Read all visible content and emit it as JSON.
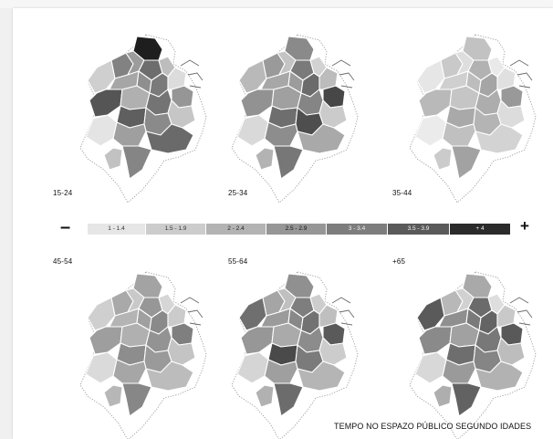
{
  "maps": [
    {
      "label": "15-24",
      "shades": [
        "#cfcfcf",
        "#828282",
        "#1e1e1e",
        "#9c9c9c",
        "#6d6d6d",
        "#bdbdbd",
        "#a6a6a6",
        "#8f8f8f",
        "#7a7a7a",
        "#dcdcdc",
        "#555555",
        "#969696",
        "#b0b0b0",
        "#747474",
        "#c6c6c6",
        "#5f5f5f",
        "#8a8a8a",
        "#e4e4e4",
        "#9f9f9f",
        "#6a6a6a",
        "#858585",
        "#c2c2c2"
      ]
    },
    {
      "label": "25-34",
      "shades": [
        "#b9b9b9",
        "#9a9a9a",
        "#8a8a8a",
        "#c4c4c4",
        "#7a7a7a",
        "#d2d2d2",
        "#a7a7a7",
        "#9c9c9c",
        "#6b6b6b",
        "#bcbcbc",
        "#929292",
        "#474747",
        "#a0a0a0",
        "#858585",
        "#cbcbcb",
        "#6e6e6e",
        "#4e4e4e",
        "#d9d9d9",
        "#8d8d8d",
        "#a9a9a9",
        "#777777",
        "#b3b3b3"
      ]
    },
    {
      "label": "35-44",
      "shades": [
        "#e6e6e6",
        "#c9c9c9",
        "#c2c2c2",
        "#dedede",
        "#b2b2b2",
        "#e9e9e9",
        "#cfcfcf",
        "#bdbdbd",
        "#a5a5a5",
        "#e0e0e0",
        "#b9b9b9",
        "#999999",
        "#c5c5c5",
        "#adadad",
        "#dcdcdc",
        "#a9a9a9",
        "#b4b4b4",
        "#ebebeb",
        "#c0c0c0",
        "#d3d3d3",
        "#a2a2a2",
        "#cbcbcb"
      ]
    },
    {
      "label": "45-54",
      "shades": [
        "#cfcfcf",
        "#a9a9a9",
        "#a3a3a3",
        "#c9c9c9",
        "#979797",
        "#d6d6d6",
        "#b4b4b4",
        "#a0a0a0",
        "#8a8a8a",
        "#cbcbcb",
        "#9e9e9e",
        "#7f7f7f",
        "#b0b0b0",
        "#939393",
        "#c4c4c4",
        "#8d8d8d",
        "#9a9a9a",
        "#dadada",
        "#a6a6a6",
        "#bcbcbc",
        "#878787",
        "#b7b7b7"
      ]
    },
    {
      "label": "55-64",
      "shades": [
        "#6f6f6f",
        "#a5a5a5",
        "#909090",
        "#c0c0c0",
        "#7e7e7e",
        "#cdcdcd",
        "#9b9b9b",
        "#888888",
        "#727272",
        "#bfbfbf",
        "#979797",
        "#5a5a5a",
        "#aaaaaa",
        "#8c8c8c",
        "#cccccc",
        "#4a4a4a",
        "#7b7b7b",
        "#d5d5d5",
        "#9f9f9f",
        "#b5b5b5",
        "#6c6c6c",
        "#b1b1b1"
      ]
    },
    {
      "label": "+65",
      "shades": [
        "#5a5a5a",
        "#b8b8b8",
        "#a9a9a9",
        "#d1d1d1",
        "#6b6b6b",
        "#dedede",
        "#8f8f8f",
        "#7a7a7a",
        "#646464",
        "#c9c9c9",
        "#8a8a8a",
        "#595959",
        "#a1a1a1",
        "#787878",
        "#bdbdbd",
        "#6e6e6e",
        "#858585",
        "#d8d8d8",
        "#9a9a9a",
        "#b2b2b2",
        "#626262",
        "#aeaeae"
      ]
    }
  ],
  "legend": {
    "minus": "–",
    "plus": "+",
    "items": [
      {
        "label": "1 - 1.4",
        "color": "#e6e6e6",
        "text": "#333333"
      },
      {
        "label": "1.5 - 1.9",
        "color": "#cccccc",
        "text": "#333333"
      },
      {
        "label": "2 - 2.4",
        "color": "#b3b3b3",
        "text": "#222222"
      },
      {
        "label": "2.5 - 2.9",
        "color": "#969696",
        "text": "#111111"
      },
      {
        "label": "3 - 3.4",
        "color": "#7d7d7d",
        "text": "#f5f5f5"
      },
      {
        "label": "3.5 - 3.9",
        "color": "#5a5a5a",
        "text": "#f5f5f5"
      },
      {
        "label": "+ 4",
        "color": "#2b2b2b",
        "text": "#f5f5f5"
      }
    ]
  },
  "title": "TEMPO NO ESPAZO PÚBLICO SEGUNDO IDADES"
}
